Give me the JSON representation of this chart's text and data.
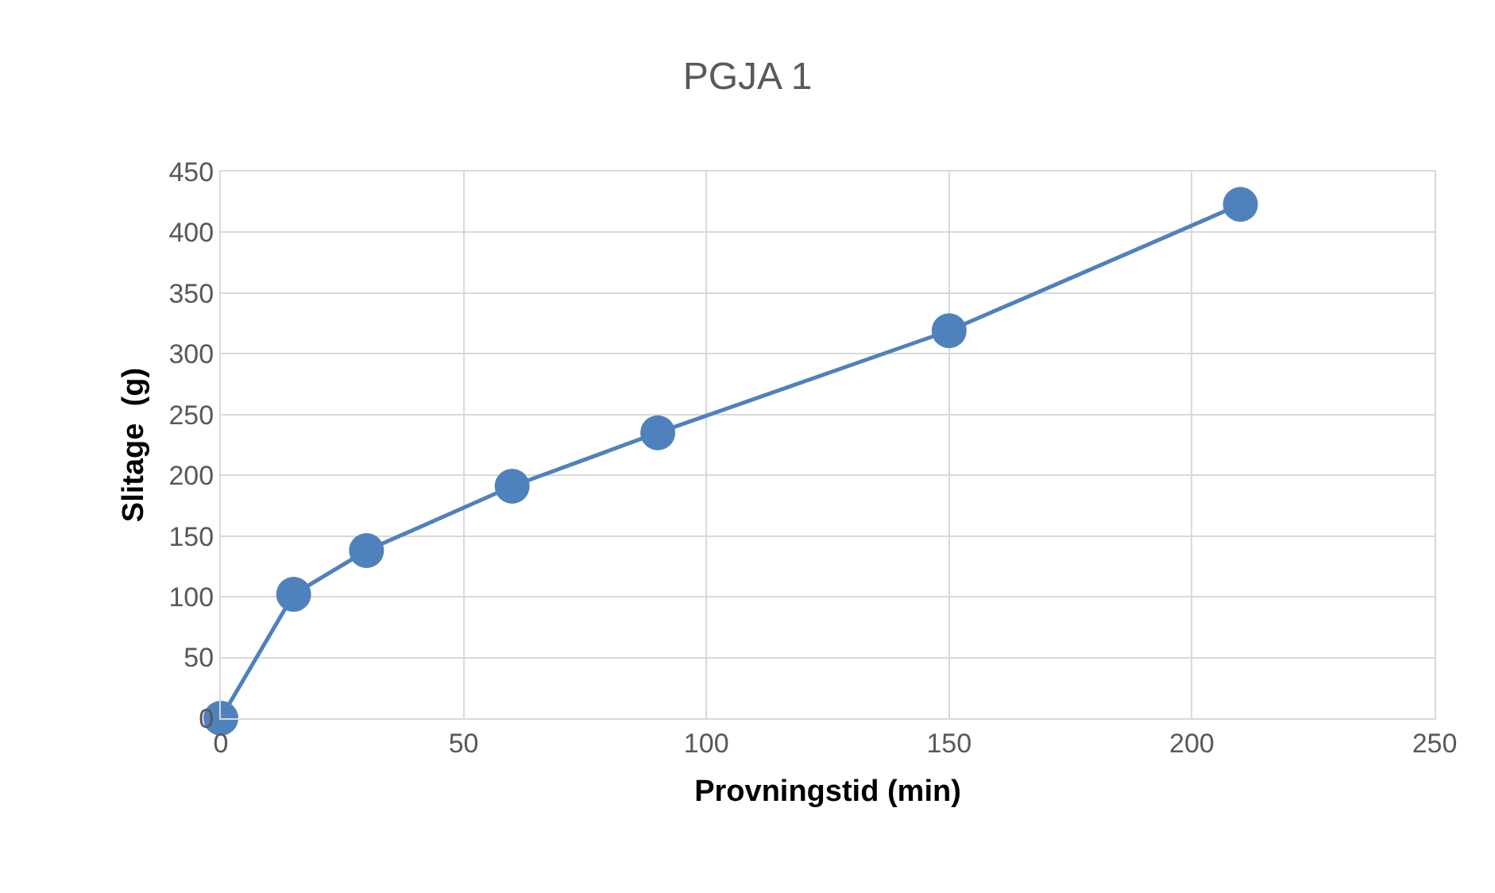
{
  "chart_data": {
    "type": "line",
    "title": "PGJA 1",
    "xlabel": "Provningstid (min)",
    "ylabel": "Slitage  (g)",
    "x": [
      0,
      15,
      30,
      60,
      90,
      150,
      210
    ],
    "series": [
      {
        "color": "#4f81bd",
        "values": [
          0,
          102,
          138,
          191,
          235,
          319,
          423
        ]
      }
    ],
    "xlim": [
      0,
      250
    ],
    "xticks": [
      0,
      50,
      100,
      150,
      200,
      250
    ],
    "ylim": [
      0,
      450
    ],
    "yticks": [
      0,
      50,
      100,
      150,
      200,
      250,
      300,
      350,
      400,
      450
    ],
    "grid": true,
    "legend": false,
    "marker": "circle",
    "line_style": "solid"
  }
}
